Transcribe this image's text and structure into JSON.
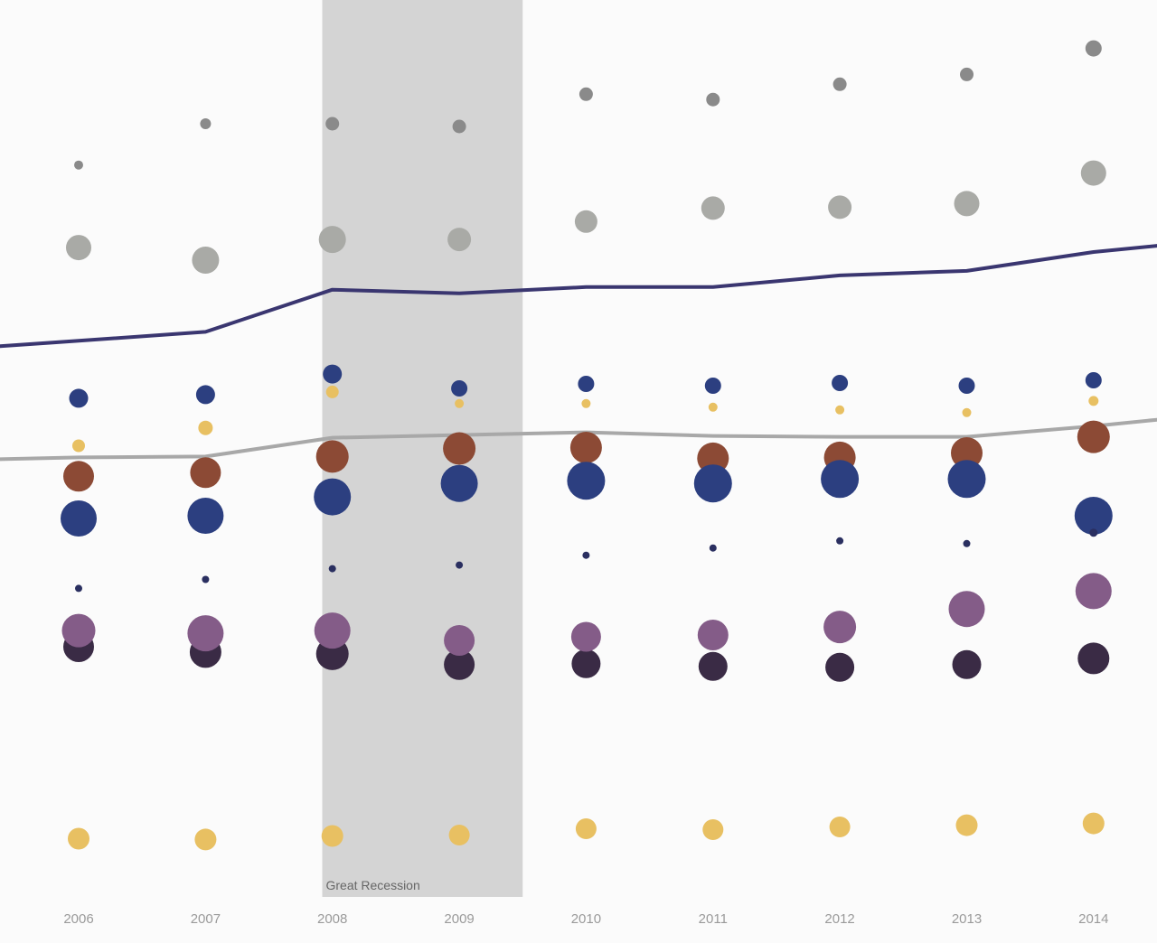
{
  "chart_data": {
    "type": "scatter",
    "title": "",
    "xlabel": "",
    "ylabel": "",
    "x": [
      2006,
      2007,
      2008,
      2009,
      2010,
      2011,
      2012,
      2013,
      2014
    ],
    "xlim": [
      2005.38,
      2014.5
    ],
    "ylim": [
      0,
      100
    ],
    "grid": false,
    "legend": "none",
    "annotation": {
      "label": "Great Recession",
      "x_start": 2007.92,
      "x_end": 2009.5,
      "color": "#d4d4d4"
    },
    "lines": [
      {
        "color": "#3a3670",
        "values": [
          62.0,
          63.0,
          67.7,
          67.3,
          68.0,
          68.0,
          69.3,
          69.8,
          71.9
        ],
        "y_at_left_edge": 61.4,
        "y_at_right_edge": 72.6
      },
      {
        "color": "#a8a8a8",
        "values": [
          49.0,
          49.1,
          51.2,
          51.5,
          51.8,
          51.4,
          51.3,
          51.3,
          52.5
        ],
        "y_at_left_edge": 48.8,
        "y_at_right_edge": 53.2
      }
    ],
    "point_series": [
      {
        "color": "#8a8a8a",
        "size": [
          1.0,
          1.2,
          1.5,
          1.5,
          1.5,
          1.5,
          1.5,
          1.5,
          1.8
        ],
        "values": [
          81.6,
          86.2,
          86.2,
          85.9,
          89.5,
          88.9,
          90.6,
          91.7,
          94.6
        ]
      },
      {
        "color": "#a9aaa6",
        "size": [
          2.8,
          3.0,
          3.0,
          2.6,
          2.5,
          2.6,
          2.6,
          2.8,
          2.8
        ],
        "values": [
          72.4,
          71.0,
          73.3,
          73.3,
          75.3,
          76.8,
          76.9,
          77.3,
          80.7
        ]
      },
      {
        "color": "#2c3f80",
        "size": [
          2.1,
          2.1,
          2.1,
          1.8,
          1.8,
          1.8,
          1.8,
          1.8,
          1.8
        ],
        "values": [
          55.6,
          56.0,
          58.3,
          56.7,
          57.2,
          57.0,
          57.3,
          57.0,
          57.6
        ]
      },
      {
        "color": "#e8c062",
        "size": [
          1.4,
          1.6,
          1.4,
          1.0,
          1.0,
          1.0,
          1.0,
          1.0,
          1.1
        ],
        "values": [
          50.3,
          52.3,
          56.3,
          55.0,
          55.0,
          54.6,
          54.3,
          54.0,
          55.3
        ]
      },
      {
        "color": "#8c4a35",
        "size": [
          3.4,
          3.4,
          3.6,
          3.6,
          3.5,
          3.5,
          3.5,
          3.5,
          3.6
        ],
        "values": [
          46.9,
          47.3,
          49.1,
          50.0,
          50.1,
          48.9,
          49.0,
          49.5,
          51.3
        ]
      },
      {
        "color": "#2c3f80",
        "size": [
          4.0,
          4.0,
          4.1,
          4.1,
          4.2,
          4.2,
          4.2,
          4.2,
          4.2
        ],
        "values": [
          42.2,
          42.5,
          44.6,
          46.1,
          46.4,
          46.1,
          46.6,
          46.6,
          42.5
        ]
      },
      {
        "color": "#2a2f60",
        "size": [
          0.8,
          0.8,
          0.8,
          0.8,
          0.8,
          0.8,
          0.8,
          0.8,
          0.9
        ],
        "values": [
          34.4,
          35.4,
          36.6,
          37.0,
          38.1,
          38.9,
          39.7,
          39.4,
          40.6
        ]
      },
      {
        "color": "#3a2b45",
        "size": [
          3.4,
          3.5,
          3.6,
          3.4,
          3.2,
          3.2,
          3.2,
          3.2,
          3.5
        ],
        "values": [
          27.9,
          27.3,
          27.1,
          25.9,
          26.0,
          25.7,
          25.6,
          25.9,
          26.6
        ]
      },
      {
        "color": "#845c88",
        "size": [
          3.7,
          4.0,
          4.0,
          3.4,
          3.3,
          3.4,
          3.6,
          4.0,
          4.0
        ],
        "values": [
          29.7,
          29.4,
          29.7,
          28.6,
          29.0,
          29.2,
          30.1,
          32.1,
          34.1
        ]
      },
      {
        "color": "#e8c062",
        "size": [
          2.4,
          2.4,
          2.4,
          2.3,
          2.3,
          2.3,
          2.3,
          2.4,
          2.4
        ],
        "values": [
          6.5,
          6.4,
          6.8,
          6.9,
          7.6,
          7.5,
          7.8,
          8.0,
          8.2
        ]
      }
    ]
  }
}
